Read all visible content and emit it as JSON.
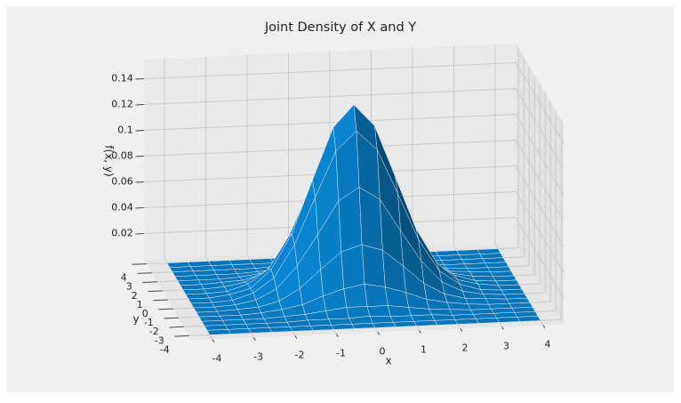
{
  "chart_data": {
    "type": "surface",
    "title": "Joint Density of X and Y",
    "xlabel": "x",
    "ylabel": "y",
    "zlabel": "f(x, y)",
    "x": [
      -4,
      -3.5,
      -3,
      -2.5,
      -2,
      -1.5,
      -1,
      -0.5,
      0,
      0.5,
      1,
      1.5,
      2,
      2.5,
      3,
      3.5,
      4
    ],
    "y": [
      -4,
      -3.5,
      -3,
      -2.5,
      -2,
      -1.5,
      -1,
      -0.5,
      0,
      0.5,
      1,
      1.5,
      2,
      2.5,
      3,
      3.5,
      4
    ],
    "z": [
      [
        0,
        0,
        0,
        0,
        0,
        0,
        0,
        0,
        0,
        0,
        0,
        0,
        0,
        0,
        0,
        0,
        0
      ],
      [
        0,
        0,
        0,
        0,
        0,
        0,
        0,
        0,
        0,
        0,
        0,
        0,
        0,
        0,
        0,
        0,
        0
      ],
      [
        0,
        0,
        0,
        0,
        0,
        0.001,
        0.001,
        0.001,
        0.002,
        0.001,
        0.001,
        0.001,
        0,
        0,
        0,
        0,
        0
      ],
      [
        0,
        0,
        0,
        0,
        0.001,
        0.002,
        0.004,
        0.006,
        0.006,
        0.006,
        0.004,
        0.002,
        0.001,
        0,
        0,
        0,
        0
      ],
      [
        0,
        0,
        0,
        0.001,
        0.003,
        0.006,
        0.012,
        0.017,
        0.02,
        0.017,
        0.012,
        0.006,
        0.003,
        0.001,
        0,
        0,
        0
      ],
      [
        0,
        0,
        0.001,
        0.002,
        0.006,
        0.015,
        0.029,
        0.042,
        0.047,
        0.042,
        0.029,
        0.015,
        0.006,
        0.002,
        0.001,
        0,
        0
      ],
      [
        0,
        0,
        0.001,
        0.004,
        0.012,
        0.029,
        0.053,
        0.078,
        0.088,
        0.078,
        0.053,
        0.029,
        0.012,
        0.004,
        0.001,
        0,
        0
      ],
      [
        0,
        0,
        0.001,
        0.006,
        0.017,
        0.042,
        0.078,
        0.113,
        0.128,
        0.113,
        0.078,
        0.042,
        0.017,
        0.006,
        0.001,
        0,
        0
      ],
      [
        0,
        0,
        0.002,
        0.006,
        0.02,
        0.047,
        0.088,
        0.128,
        0.145,
        0.128,
        0.088,
        0.047,
        0.02,
        0.006,
        0.002,
        0,
        0
      ],
      [
        0,
        0,
        0.001,
        0.006,
        0.017,
        0.042,
        0.078,
        0.113,
        0.128,
        0.113,
        0.078,
        0.042,
        0.017,
        0.006,
        0.001,
        0,
        0
      ],
      [
        0,
        0,
        0.001,
        0.004,
        0.012,
        0.029,
        0.053,
        0.078,
        0.088,
        0.078,
        0.053,
        0.029,
        0.012,
        0.004,
        0.001,
        0,
        0
      ],
      [
        0,
        0,
        0.001,
        0.002,
        0.006,
        0.015,
        0.029,
        0.042,
        0.047,
        0.042,
        0.029,
        0.015,
        0.006,
        0.002,
        0.001,
        0,
        0
      ],
      [
        0,
        0,
        0,
        0.001,
        0.003,
        0.006,
        0.012,
        0.017,
        0.02,
        0.017,
        0.012,
        0.006,
        0.003,
        0.001,
        0,
        0,
        0
      ],
      [
        0,
        0,
        0,
        0,
        0.001,
        0.002,
        0.004,
        0.006,
        0.006,
        0.006,
        0.004,
        0.002,
        0.001,
        0,
        0,
        0,
        0
      ],
      [
        0,
        0,
        0,
        0,
        0,
        0.001,
        0.001,
        0.001,
        0.002,
        0.001,
        0.001,
        0.001,
        0,
        0,
        0,
        0,
        0
      ],
      [
        0,
        0,
        0,
        0,
        0,
        0,
        0,
        0,
        0,
        0,
        0,
        0,
        0,
        0,
        0,
        0,
        0
      ],
      [
        0,
        0,
        0,
        0,
        0,
        0,
        0,
        0,
        0,
        0,
        0,
        0,
        0,
        0,
        0,
        0,
        0
      ]
    ],
    "color": "#0878bd",
    "xlim": [
      -4.5,
      4.5
    ],
    "ylim": [
      -4.5,
      4.5
    ],
    "zlim": [
      0,
      0.155
    ],
    "xticks": [
      -4,
      -3,
      -2,
      -1,
      0,
      1,
      2,
      3,
      4
    ],
    "yticks": [
      -4,
      -3,
      -2,
      -1,
      0,
      1,
      2,
      3,
      4
    ],
    "zticks": [
      0.02,
      0.04,
      0.06,
      0.08,
      0.1,
      0.12,
      0.14
    ],
    "grid": true
  }
}
